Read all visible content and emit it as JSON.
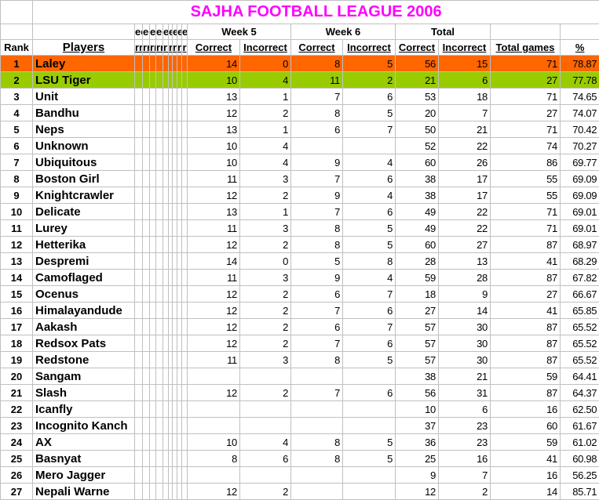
{
  "title": "SAJHA FOOTBALL LEAGUE 2006",
  "colors": {
    "first_place": "#ff6600",
    "second_place": "#99cc00",
    "title": "#ff00ff",
    "grid": "#c0c0c0"
  },
  "header": {
    "week5": "Week 5",
    "week6": "Week 6",
    "total": "Total",
    "narrow_top": [
      "ee",
      "ee",
      "ee",
      "ee",
      "ee",
      "ee",
      "ee",
      "ee",
      "e"
    ],
    "narrow_sub": [
      "rr",
      "rr",
      "rr",
      "rr",
      "rr",
      "rr",
      "rr",
      "rr",
      "r"
    ],
    "rank": "Rank",
    "players": "Players",
    "correct": "Correct",
    "incorrect": "Incorrect",
    "total_games": "Total games",
    "percent": "%"
  },
  "rows": [
    [
      "1",
      "Laley",
      "14",
      "0",
      "8",
      "5",
      "56",
      "15",
      "71",
      "78.87"
    ],
    [
      "2",
      "LSU Tiger",
      "10",
      "4",
      "11",
      "2",
      "21",
      "6",
      "27",
      "77.78"
    ],
    [
      "3",
      "Unit",
      "13",
      "1",
      "7",
      "6",
      "53",
      "18",
      "71",
      "74.65"
    ],
    [
      "4",
      "Bandhu",
      "12",
      "2",
      "8",
      "5",
      "20",
      "7",
      "27",
      "74.07"
    ],
    [
      "5",
      "Neps",
      "13",
      "1",
      "6",
      "7",
      "50",
      "21",
      "71",
      "70.42"
    ],
    [
      "6",
      "Unknown",
      "10",
      "4",
      "",
      "",
      "52",
      "22",
      "74",
      "70.27"
    ],
    [
      "7",
      "Ubiquitous",
      "10",
      "4",
      "9",
      "4",
      "60",
      "26",
      "86",
      "69.77"
    ],
    [
      "8",
      "Boston Girl",
      "11",
      "3",
      "7",
      "6",
      "38",
      "17",
      "55",
      "69.09"
    ],
    [
      "9",
      "Knightcrawler",
      "12",
      "2",
      "9",
      "4",
      "38",
      "17",
      "55",
      "69.09"
    ],
    [
      "10",
      "Delicate",
      "13",
      "1",
      "7",
      "6",
      "49",
      "22",
      "71",
      "69.01"
    ],
    [
      "11",
      "Lurey",
      "11",
      "3",
      "8",
      "5",
      "49",
      "22",
      "71",
      "69.01"
    ],
    [
      "12",
      "Hetterika",
      "12",
      "2",
      "8",
      "5",
      "60",
      "27",
      "87",
      "68.97"
    ],
    [
      "13",
      "Despremi",
      "14",
      "0",
      "5",
      "8",
      "28",
      "13",
      "41",
      "68.29"
    ],
    [
      "14",
      "Camoflaged",
      "11",
      "3",
      "9",
      "4",
      "59",
      "28",
      "87",
      "67.82"
    ],
    [
      "15",
      "Ocenus",
      "12",
      "2",
      "6",
      "7",
      "18",
      "9",
      "27",
      "66.67"
    ],
    [
      "16",
      "Himalayandude",
      "12",
      "2",
      "7",
      "6",
      "27",
      "14",
      "41",
      "65.85"
    ],
    [
      "17",
      "Aakash",
      "12",
      "2",
      "6",
      "7",
      "57",
      "30",
      "87",
      "65.52"
    ],
    [
      "18",
      "Redsox Pats",
      "12",
      "2",
      "7",
      "6",
      "57",
      "30",
      "87",
      "65.52"
    ],
    [
      "19",
      "Redstone",
      "11",
      "3",
      "8",
      "5",
      "57",
      "30",
      "87",
      "65.52"
    ],
    [
      "20",
      "Sangam",
      "",
      "",
      "",
      "",
      "38",
      "21",
      "59",
      "64.41"
    ],
    [
      "21",
      "Slash",
      "12",
      "2",
      "7",
      "6",
      "56",
      "31",
      "87",
      "64.37"
    ],
    [
      "22",
      "Icanfly",
      "",
      "",
      "",
      "",
      "10",
      "6",
      "16",
      "62.50"
    ],
    [
      "23",
      "Incognito Kanch",
      "",
      "",
      "",
      "",
      "37",
      "23",
      "60",
      "61.67"
    ],
    [
      "24",
      "AX",
      "10",
      "4",
      "8",
      "5",
      "36",
      "23",
      "59",
      "61.02"
    ],
    [
      "25",
      "Basnyat",
      "8",
      "6",
      "8",
      "5",
      "25",
      "16",
      "41",
      "60.98"
    ],
    [
      "26",
      "Mero Jagger",
      "",
      "",
      "",
      "",
      "9",
      "7",
      "16",
      "56.25"
    ],
    [
      "27",
      "Nepali Warne",
      "12",
      "2",
      "",
      "",
      "12",
      "2",
      "14",
      "85.71"
    ]
  ]
}
